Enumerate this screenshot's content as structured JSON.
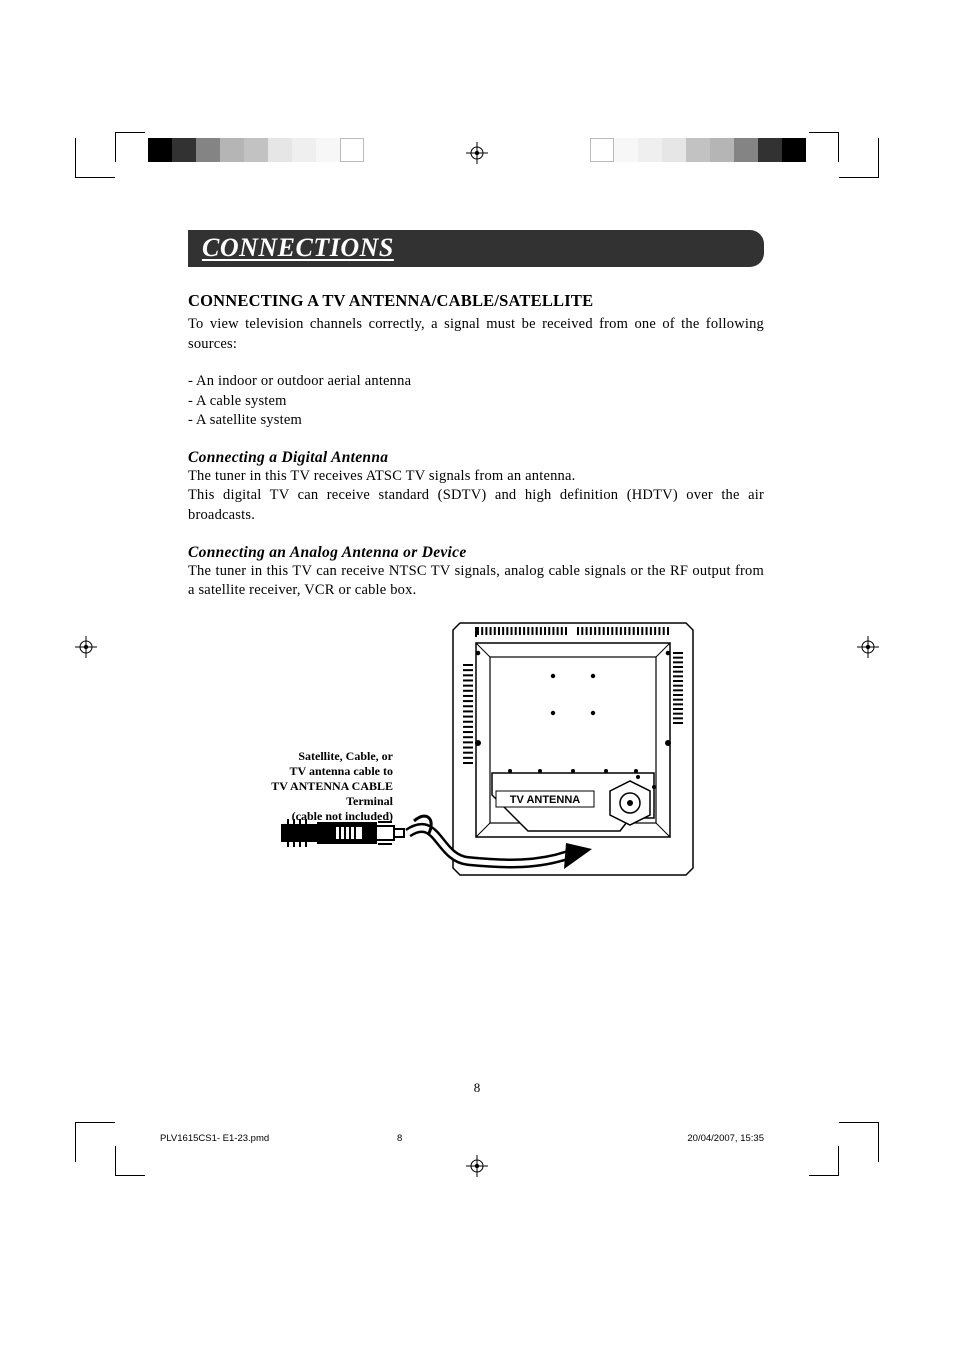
{
  "printer_marks": {
    "colorbar_left": [
      "#000000",
      "#323232",
      "#848484",
      "#b5b5b5",
      "#c2c2c2",
      "#e6e6e6",
      "#efefef",
      "#f7f7f7",
      "#ffffff"
    ],
    "colorbar_right": [
      "#000000",
      "#323232",
      "#848484",
      "#b5b5b5",
      "#c2c2c2",
      "#e6e6e6",
      "#efefef",
      "#f7f7f7",
      "#ffffff"
    ],
    "reg_mark_color": "#000000"
  },
  "banner": {
    "text": "CONNECTIONS",
    "bg": "#323232",
    "fg": "#ffffff",
    "fontsize": 26
  },
  "section": {
    "heading": "CONNECTING A TV ANTENNA/CABLE/SATELLITE",
    "intro": "To view television channels correctly, a signal must be received from one of the following sources:",
    "bullets": [
      "- An indoor or outdoor aerial antenna",
      "- A cable system",
      "- A satellite system"
    ],
    "sub1_title": "Connecting a Digital Antenna",
    "sub1_line1": "The tuner in this TV receives ATSC TV signals from an antenna.",
    "sub1_line2": "This digital TV can receive standard (SDTV) and high definition (HDTV) over the air broadcasts.",
    "sub2_title": "Connecting an Analog Antenna or Device",
    "sub2_body": "The tuner in this TV can receive NTSC TV signals, analog cable signals or the RF output from a satellite receiver, VCR or cable box."
  },
  "diagram": {
    "cable_label_l1": "Satellite, Cable, or",
    "cable_label_l2": "TV antenna cable to",
    "cable_label_l3": "TV ANTENNA CABLE Terminal",
    "cable_label_l4": "(cable not included)",
    "port_label": "TV ANTENNA",
    "tv_color": "#ffffff",
    "stroke": "#000000",
    "cable_color": "#000000"
  },
  "page_number": "8",
  "footer": {
    "file": "PLV1615CS1- E1-23.pmd",
    "sheet": "8",
    "datetime": "20/04/2007, 15:35"
  },
  "typography": {
    "body_font": "Times New Roman",
    "body_size_pt": 11,
    "heading_size_pt": 12.5,
    "sub_size_pt": 12,
    "footer_font": "Arial",
    "footer_size_pt": 7
  }
}
